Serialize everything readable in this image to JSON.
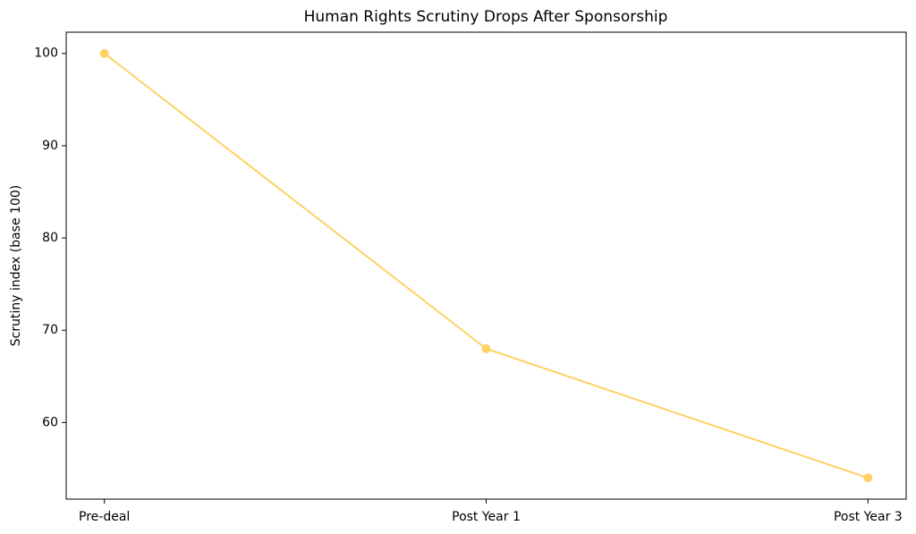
{
  "chart_data": {
    "type": "line",
    "title": "Human Rights Scrutiny Drops After Sponsorship",
    "y_label": "Scrutiny index (base 100)",
    "categories": [
      "Pre-deal",
      "Post Year 1",
      "Post Year 3"
    ],
    "values": [
      100,
      68,
      54
    ],
    "color": "#ffd166",
    "ylim": [
      51.7,
      102.3
    ],
    "yticks": [
      60,
      70,
      80,
      90,
      100
    ],
    "grid": false
  }
}
